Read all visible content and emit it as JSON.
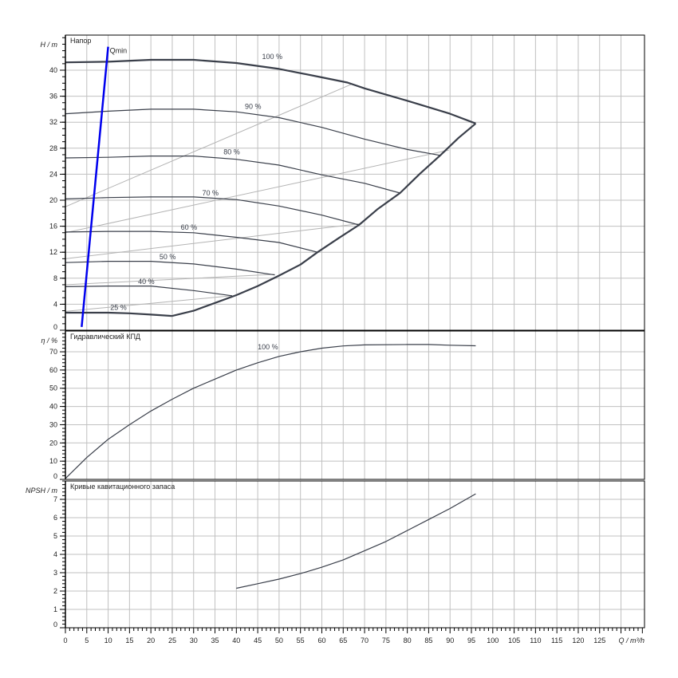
{
  "chart_data": [
    {
      "type": "line",
      "panel": "head",
      "ylabel": "H / m",
      "title": "Напор",
      "ylim": [
        0,
        45.4
      ],
      "yticks": [
        0,
        4,
        8,
        12,
        16,
        20,
        24,
        28,
        32,
        36,
        40
      ],
      "grid": true,
      "series": [
        {
          "name": "100 %",
          "label_at": [
            46,
            41.5
          ],
          "bold": true,
          "points": [
            [
              0,
              41.2
            ],
            [
              10,
              41.3
            ],
            [
              20,
              41.6
            ],
            [
              30,
              41.6
            ],
            [
              40,
              41.1
            ],
            [
              50,
              40.2
            ],
            [
              60,
              38.9
            ],
            [
              66,
              38.1
            ],
            [
              70,
              37.2
            ],
            [
              80,
              35.3
            ],
            [
              90,
              33.3
            ],
            [
              96,
              31.8
            ]
          ]
        },
        {
          "name": "90 %",
          "label_at": [
            42,
            33.8
          ],
          "points": [
            [
              0,
              33.3
            ],
            [
              10,
              33.7
            ],
            [
              20,
              34.0
            ],
            [
              30,
              34.0
            ],
            [
              40,
              33.6
            ],
            [
              50,
              32.7
            ],
            [
              60,
              31.2
            ],
            [
              70,
              29.4
            ],
            [
              80,
              27.8
            ],
            [
              87.7,
              26.9
            ]
          ]
        },
        {
          "name": "80 %",
          "label_at": [
            37,
            26.8
          ],
          "points": [
            [
              0,
              26.5
            ],
            [
              10,
              26.6
            ],
            [
              20,
              26.8
            ],
            [
              30,
              26.8
            ],
            [
              40,
              26.3
            ],
            [
              50,
              25.4
            ],
            [
              60,
              23.9
            ],
            [
              70,
              22.6
            ],
            [
              78.3,
              21.1
            ]
          ]
        },
        {
          "name": "70 %",
          "label_at": [
            32,
            20.5
          ],
          "points": [
            [
              0,
              20.2
            ],
            [
              10,
              20.4
            ],
            [
              20,
              20.5
            ],
            [
              30,
              20.5
            ],
            [
              40,
              20.1
            ],
            [
              50,
              19.1
            ],
            [
              60,
              17.7
            ],
            [
              68.7,
              16.2
            ]
          ]
        },
        {
          "name": "60 %",
          "label_at": [
            27,
            15.2
          ],
          "points": [
            [
              0,
              15.1
            ],
            [
              10,
              15.2
            ],
            [
              20,
              15.2
            ],
            [
              30,
              15.0
            ],
            [
              40,
              14.3
            ],
            [
              50,
              13.5
            ],
            [
              59,
              12.0
            ]
          ]
        },
        {
          "name": "50 %",
          "label_at": [
            22,
            10.7
          ],
          "points": [
            [
              0,
              10.4
            ],
            [
              10,
              10.6
            ],
            [
              20,
              10.6
            ],
            [
              30,
              10.2
            ],
            [
              40,
              9.4
            ],
            [
              49,
              8.5
            ]
          ]
        },
        {
          "name": "40 %",
          "label_at": [
            17,
            6.9
          ],
          "points": [
            [
              0,
              6.7
            ],
            [
              10,
              6.8
            ],
            [
              20,
              6.8
            ],
            [
              30,
              6.1
            ],
            [
              39,
              5.3
            ]
          ]
        },
        {
          "name": "25 %",
          "label_at": [
            10.5,
            2.9
          ],
          "bold": true,
          "points": [
            [
              0,
              2.7
            ],
            [
              10,
              2.7
            ],
            [
              15,
              2.6
            ],
            [
              20,
              2.4
            ],
            [
              25,
              2.2
            ]
          ]
        },
        {
          "name": "",
          "bold": true,
          "points": [
            [
              25,
              2.2
            ],
            [
              30,
              3.0
            ],
            [
              35,
              4.2
            ],
            [
              40,
              5.4
            ],
            [
              45,
              6.8
            ],
            [
              50,
              8.4
            ],
            [
              55,
              10.1
            ],
            [
              59,
              12.0
            ],
            [
              64,
              14.2
            ],
            [
              68.7,
              16.2
            ],
            [
              73,
              18.6
            ],
            [
              78.3,
              21.1
            ],
            [
              83,
              24.1
            ],
            [
              87.7,
              26.9
            ],
            [
              92,
              29.6
            ],
            [
              96,
              31.8
            ]
          ]
        }
      ],
      "iso_lines": [
        [
          [
            0,
            19.0
          ],
          [
            66.8,
            37.8
          ]
        ],
        [
          [
            0,
            15.0
          ],
          [
            89.7,
            27.7
          ]
        ],
        [
          [
            0,
            11.0
          ],
          [
            69,
            16.4
          ]
        ],
        [
          [
            0,
            7.0
          ],
          [
            49,
            8.6
          ]
        ],
        [
          [
            0,
            2.9
          ],
          [
            39,
            5.3
          ]
        ]
      ],
      "qmin": {
        "name": "Qmin",
        "color": "#0000ee",
        "points": [
          [
            3.8,
            0.5
          ],
          [
            10,
            43.6
          ]
        ]
      }
    },
    {
      "type": "line",
      "panel": "efficiency",
      "ylabel": "η / %",
      "title": "Гидравлический КПД",
      "ylim": [
        0,
        81.4
      ],
      "yticks": [
        0,
        10,
        20,
        30,
        40,
        50,
        60,
        70
      ],
      "grid": true,
      "series": [
        {
          "name": "100 %",
          "label_at": [
            45,
            70.5
          ],
          "points": [
            [
              0,
              0.5
            ],
            [
              5,
              12
            ],
            [
              10,
              22
            ],
            [
              15,
              30
            ],
            [
              20,
              37.5
            ],
            [
              25,
              44
            ],
            [
              30,
              50
            ],
            [
              35,
              55
            ],
            [
              40,
              60
            ],
            [
              45,
              64
            ],
            [
              50,
              67.5
            ],
            [
              55,
              70
            ],
            [
              60,
              72
            ],
            [
              65,
              73.2
            ],
            [
              70,
              73.8
            ],
            [
              80,
              74.0
            ],
            [
              85,
              74.0
            ],
            [
              90,
              73.6
            ],
            [
              96,
              73.3
            ]
          ]
        }
      ]
    },
    {
      "type": "line",
      "panel": "npsh",
      "ylabel": "NPSH / m",
      "title": "Кривые кавитационного запаса",
      "ylim": [
        0,
        8
      ],
      "yticks": [
        0,
        1,
        2,
        3,
        4,
        5,
        6,
        7
      ],
      "grid": true,
      "series": [
        {
          "name": "",
          "points": [
            [
              40,
              2.15
            ],
            [
              45,
              2.4
            ],
            [
              50,
              2.65
            ],
            [
              55,
              2.95
            ],
            [
              60,
              3.3
            ],
            [
              65,
              3.7
            ],
            [
              70,
              4.2
            ],
            [
              75,
              4.7
            ],
            [
              80,
              5.3
            ],
            [
              85,
              5.9
            ],
            [
              90,
              6.5
            ],
            [
              96,
              7.3
            ]
          ]
        }
      ]
    }
  ],
  "xaxis": {
    "xlabel": "Q / m³/h",
    "xlim": [
      0,
      135.5
    ],
    "xticks": [
      0,
      5,
      10,
      15,
      20,
      25,
      30,
      35,
      40,
      45,
      50,
      55,
      60,
      65,
      70,
      75,
      80,
      85,
      90,
      95,
      100,
      105,
      110,
      115,
      120,
      125
    ]
  },
  "colors": {
    "curve": "#3a3f4a",
    "grid": "#c0c0c0",
    "iso": "#b4b4b4",
    "qmin": "#0000ee"
  }
}
